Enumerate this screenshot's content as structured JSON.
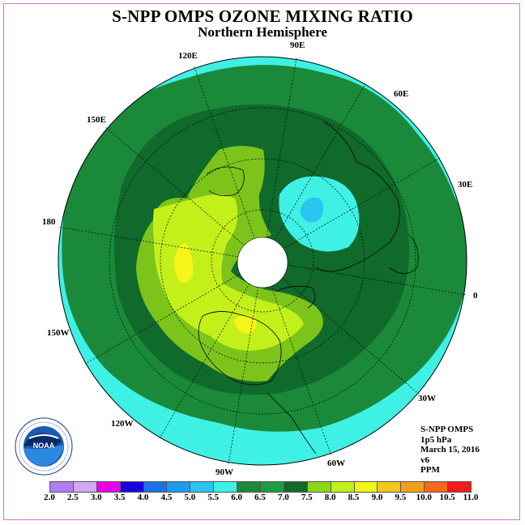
{
  "title": "S-NPP OMPS OZONE MIXING RATIO",
  "subtitle": "Northern Hemisphere",
  "longitude_labels": {
    "e90": "90E",
    "e60": "60E",
    "e30": "30E",
    "zero": "0",
    "w30": "30W",
    "w60": "60W",
    "w90": "90W",
    "w120": "120W",
    "w150": "150W",
    "d180": "180",
    "e150": "150E",
    "e120": "120E"
  },
  "info": {
    "instrument": "S-NPP OMPS",
    "level": "1p5 hPa",
    "date": "March 15, 2016",
    "version": "v6",
    "units": "PPM"
  },
  "colorbar": {
    "ticks": [
      "2.0",
      "2.5",
      "3.0",
      "3.5",
      "4.0",
      "4.5",
      "5.0",
      "5.5",
      "6.0",
      "6.5",
      "7.0",
      "7.5",
      "8.0",
      "8.5",
      "9.0",
      "9.5",
      "10.0",
      "10.5",
      "11.0"
    ],
    "colors": [
      "#b27cf2",
      "#d2a8f2",
      "#e800e8",
      "#1a00e0",
      "#1a72e8",
      "#1a9cf2",
      "#2ac4f0",
      "#3ff0e4",
      "#1a8a3a",
      "#1c9c45",
      "#106a2c",
      "#8cd61a",
      "#c4f01a",
      "#f5f51a",
      "#f2c81a",
      "#f2a01a",
      "#f26a1a",
      "#f21a1a",
      "#8a5a3a"
    ]
  },
  "contour_colors": {
    "level_5_5": "#3ff0e4",
    "level_5_0": "#2ac4f0",
    "level_6_0": "#1a8a3a",
    "level_6_5": "#106a2c",
    "level_7_0": "#7cc41a",
    "level_7_5": "#c4f01a",
    "level_8_0": "#f5f51a",
    "polar_gap": "#ffffff"
  },
  "logo": {
    "text": "NOAA",
    "ring_text": "NATIONAL OCEANIC AND ATMOSPHERIC ADMINISTRATION U.S. DEPARTMENT OF COMMERCE"
  }
}
